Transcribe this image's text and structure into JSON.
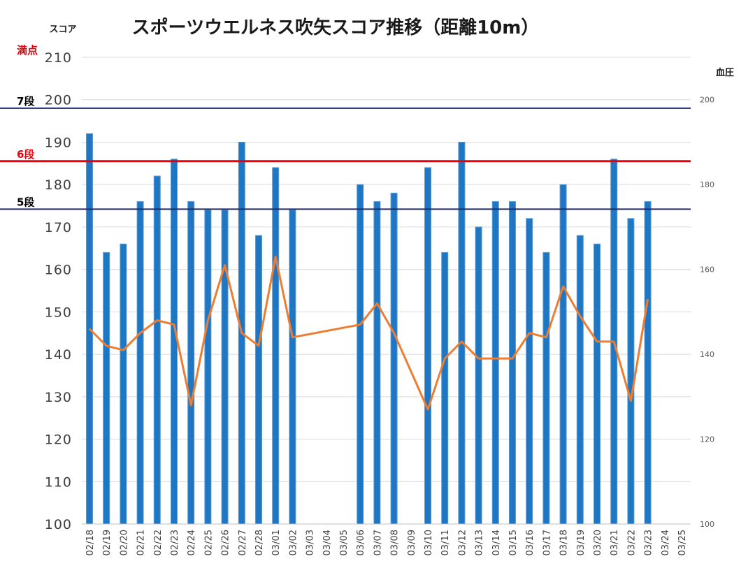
{
  "chart_data": {
    "type": "bar",
    "title": "スポーツウエルネス吹矢スコア推移（距離10m）",
    "ylabel": "スコア",
    "y2label": "血圧",
    "ylim": [
      100,
      210
    ],
    "yticks": [
      100,
      110,
      120,
      130,
      140,
      150,
      160,
      170,
      180,
      190,
      200,
      210
    ],
    "y2lim": [
      100,
      210
    ],
    "y2ticks": [
      100,
      120,
      140,
      160,
      180,
      200
    ],
    "grid": true,
    "categories": [
      "02/18",
      "02/19",
      "02/20",
      "02/21",
      "02/22",
      "02/23",
      "02/24",
      "02/25",
      "02/26",
      "02/27",
      "02/28",
      "03/01",
      "03/02",
      "03/03",
      "03/04",
      "03/05",
      "03/06",
      "03/07",
      "03/08",
      "03/09",
      "03/10",
      "03/11",
      "03/12",
      "03/13",
      "03/14",
      "03/15",
      "03/16",
      "03/17",
      "03/18",
      "03/19",
      "03/20",
      "03/21",
      "03/22",
      "03/23",
      "03/24",
      "03/25"
    ],
    "series": [
      {
        "kind": "bar",
        "color": "#1f77c4",
        "values": [
          192,
          164,
          166,
          176,
          182,
          186,
          176,
          174,
          174,
          190,
          168,
          184,
          174,
          null,
          null,
          null,
          180,
          176,
          178,
          null,
          184,
          164,
          190,
          170,
          176,
          176,
          172,
          164,
          180,
          168,
          166,
          186,
          172,
          176,
          null,
          null
        ]
      },
      {
        "kind": "line",
        "color": "#ed7d31",
        "axis": "right",
        "values": [
          146,
          142,
          141,
          145,
          148,
          147,
          128,
          148,
          161,
          145,
          142,
          163,
          144,
          null,
          null,
          null,
          147,
          152,
          145,
          null,
          127,
          139,
          143,
          139,
          139,
          139,
          145,
          144,
          156,
          149,
          143,
          143,
          129,
          153,
          null,
          null
        ]
      }
    ],
    "reference_lines": [
      {
        "label": "満点",
        "value": 210,
        "color": "#e8000b",
        "line": false
      },
      {
        "label": "7段",
        "value": 198,
        "color": "#000000",
        "line_color": "#1f2a6b",
        "line": true
      },
      {
        "label": "6段",
        "value": 185.5,
        "color": "#e8000b",
        "line_color": "#e8000b",
        "line": true
      },
      {
        "label": "5段",
        "value": 174.2,
        "color": "#000000",
        "line_color": "#1f2a6b",
        "line": true
      }
    ]
  }
}
